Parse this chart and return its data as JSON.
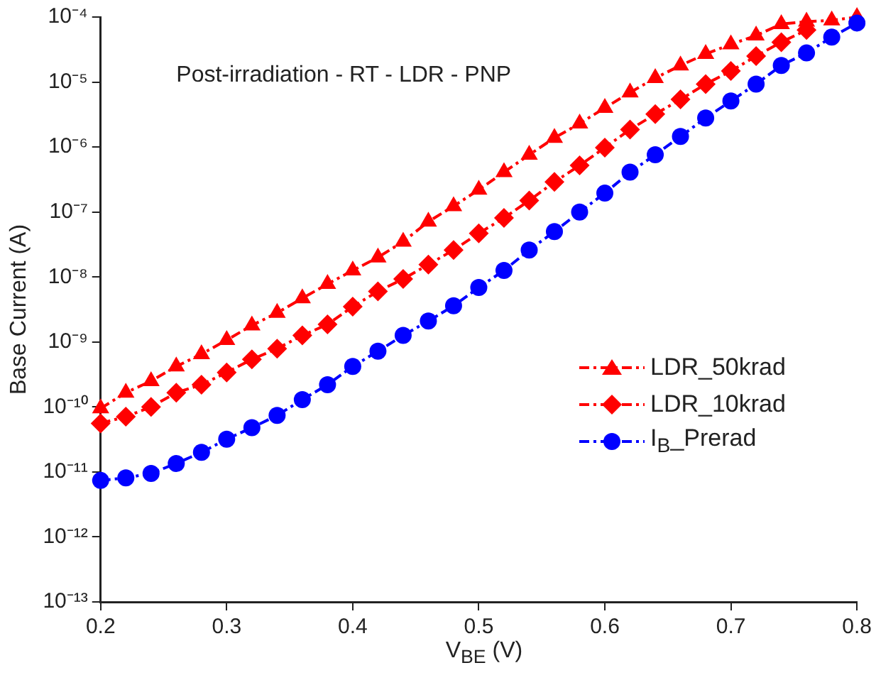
{
  "chart_data": {
    "type": "line",
    "title": "Post-irradiation - RT - LDR - PNP",
    "xlabel": "V$_{BE}$ (V)",
    "ylabel": "Base Current (A)",
    "x": [
      0.2,
      0.22,
      0.24,
      0.26,
      0.28,
      0.3,
      0.32,
      0.34,
      0.36,
      0.38,
      0.4,
      0.42,
      0.44,
      0.46,
      0.48,
      0.5,
      0.52,
      0.54,
      0.56,
      0.58,
      0.6,
      0.62,
      0.64,
      0.66,
      0.68,
      0.7,
      0.72,
      0.74,
      0.76,
      0.78,
      0.8
    ],
    "series": [
      {
        "name": "LDR_50krad",
        "color": "#ff0000",
        "marker": "triangle",
        "values": [
          9.5e-11,
          1.66e-10,
          2.5e-10,
          4.2e-10,
          6.5e-10,
          1.07e-09,
          1.8e-09,
          2.8e-09,
          4.7e-09,
          7.8e-09,
          1.26e-08,
          2e-08,
          3.5e-08,
          7.1e-08,
          1.23e-07,
          2.2e-07,
          4.1e-07,
          7.6e-07,
          1.38e-06,
          2.3e-06,
          4e-06,
          6.9e-06,
          1.15e-05,
          1.8e-05,
          2.7e-05,
          3.8e-05,
          5.2e-05,
          7.8e-05,
          8.5e-05,
          8.9e-05,
          0.0001
        ]
      },
      {
        "name": "LDR_10krad",
        "color": "#ff0000",
        "marker": "diamond",
        "values": [
          5.6e-11,
          7.1e-11,
          1e-10,
          1.66e-10,
          2.2e-10,
          3.4e-10,
          5.4e-10,
          7.9e-10,
          1.26e-09,
          1.86e-09,
          3.5e-09,
          6e-09,
          9.3e-09,
          1.55e-08,
          2.6e-08,
          4.7e-08,
          8.1e-08,
          1.5e-07,
          2.9e-07,
          5.2e-07,
          9.8e-07,
          1.86e-06,
          3.2e-06,
          5.4e-06,
          9.3e-06,
          1.48e-05,
          2.5e-05,
          4.1e-05,
          6.3e-05,
          null,
          null
        ]
      },
      {
        "name": "I$_{B}$_Prerad",
        "color": "#0000ff",
        "marker": "circle",
        "values": [
          7.4e-12,
          8.1e-12,
          9.5e-12,
          1.35e-11,
          2e-11,
          3.2e-11,
          4.8e-11,
          7.4e-11,
          1.3e-10,
          2.2e-10,
          4.2e-10,
          7.2e-10,
          1.26e-09,
          2.1e-09,
          3.6e-09,
          6.9e-09,
          1.26e-08,
          2.6e-08,
          5e-08,
          1e-07,
          1.95e-07,
          4.1e-07,
          7.6e-07,
          1.45e-06,
          2.8e-06,
          5.1e-06,
          9.3e-06,
          1.8e-05,
          2.8e-05,
          4.9e-05,
          8.1e-05
        ]
      }
    ],
    "log": "y",
    "line_style": "dashed",
    "legend": "right",
    "grid": false,
    "xlim": [
      0.2,
      0.8
    ],
    "xticks": [
      0.2,
      0.3,
      0.4,
      0.5,
      0.6,
      0.7,
      0.8
    ],
    "ylim": [
      1e-13,
      0.0001
    ],
    "yticks": [
      {
        "value": 1e-13,
        "label": "10⁻¹³"
      },
      {
        "value": 1e-12,
        "label": "10⁻¹²"
      },
      {
        "value": 1e-11,
        "label": "10⁻¹¹"
      },
      {
        "value": 1e-10,
        "label": "10⁻¹⁰"
      },
      {
        "value": 1e-09,
        "label": "10⁻⁹"
      },
      {
        "value": 1e-08,
        "label": "10⁻⁸"
      },
      {
        "value": 1e-07,
        "label": "10⁻⁷"
      },
      {
        "value": 1e-06,
        "label": "10⁻⁶"
      },
      {
        "value": 1e-05,
        "label": "10⁻⁵"
      },
      {
        "value": 0.0001,
        "label": "10⁻⁴"
      }
    ]
  }
}
